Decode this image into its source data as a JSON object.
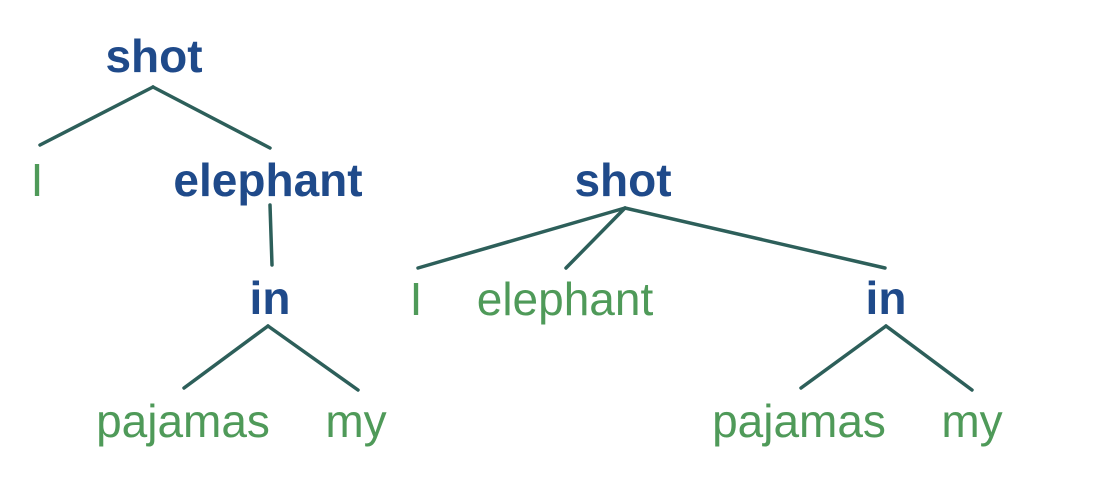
{
  "colors": {
    "head_word": "#1f4a8a",
    "leaf_word": "#4f9a59",
    "edge": "#2d5f5a"
  },
  "tree_left": {
    "root": "shot",
    "child_left": "I",
    "child_right": "elephant",
    "grandchild": "in",
    "leaf_left": "pajamas",
    "leaf_right": "my"
  },
  "tree_right": {
    "root": "shot",
    "child_1": "I",
    "child_2": "elephant",
    "child_3": "in",
    "leaf_left": "pajamas",
    "leaf_right": "my"
  }
}
